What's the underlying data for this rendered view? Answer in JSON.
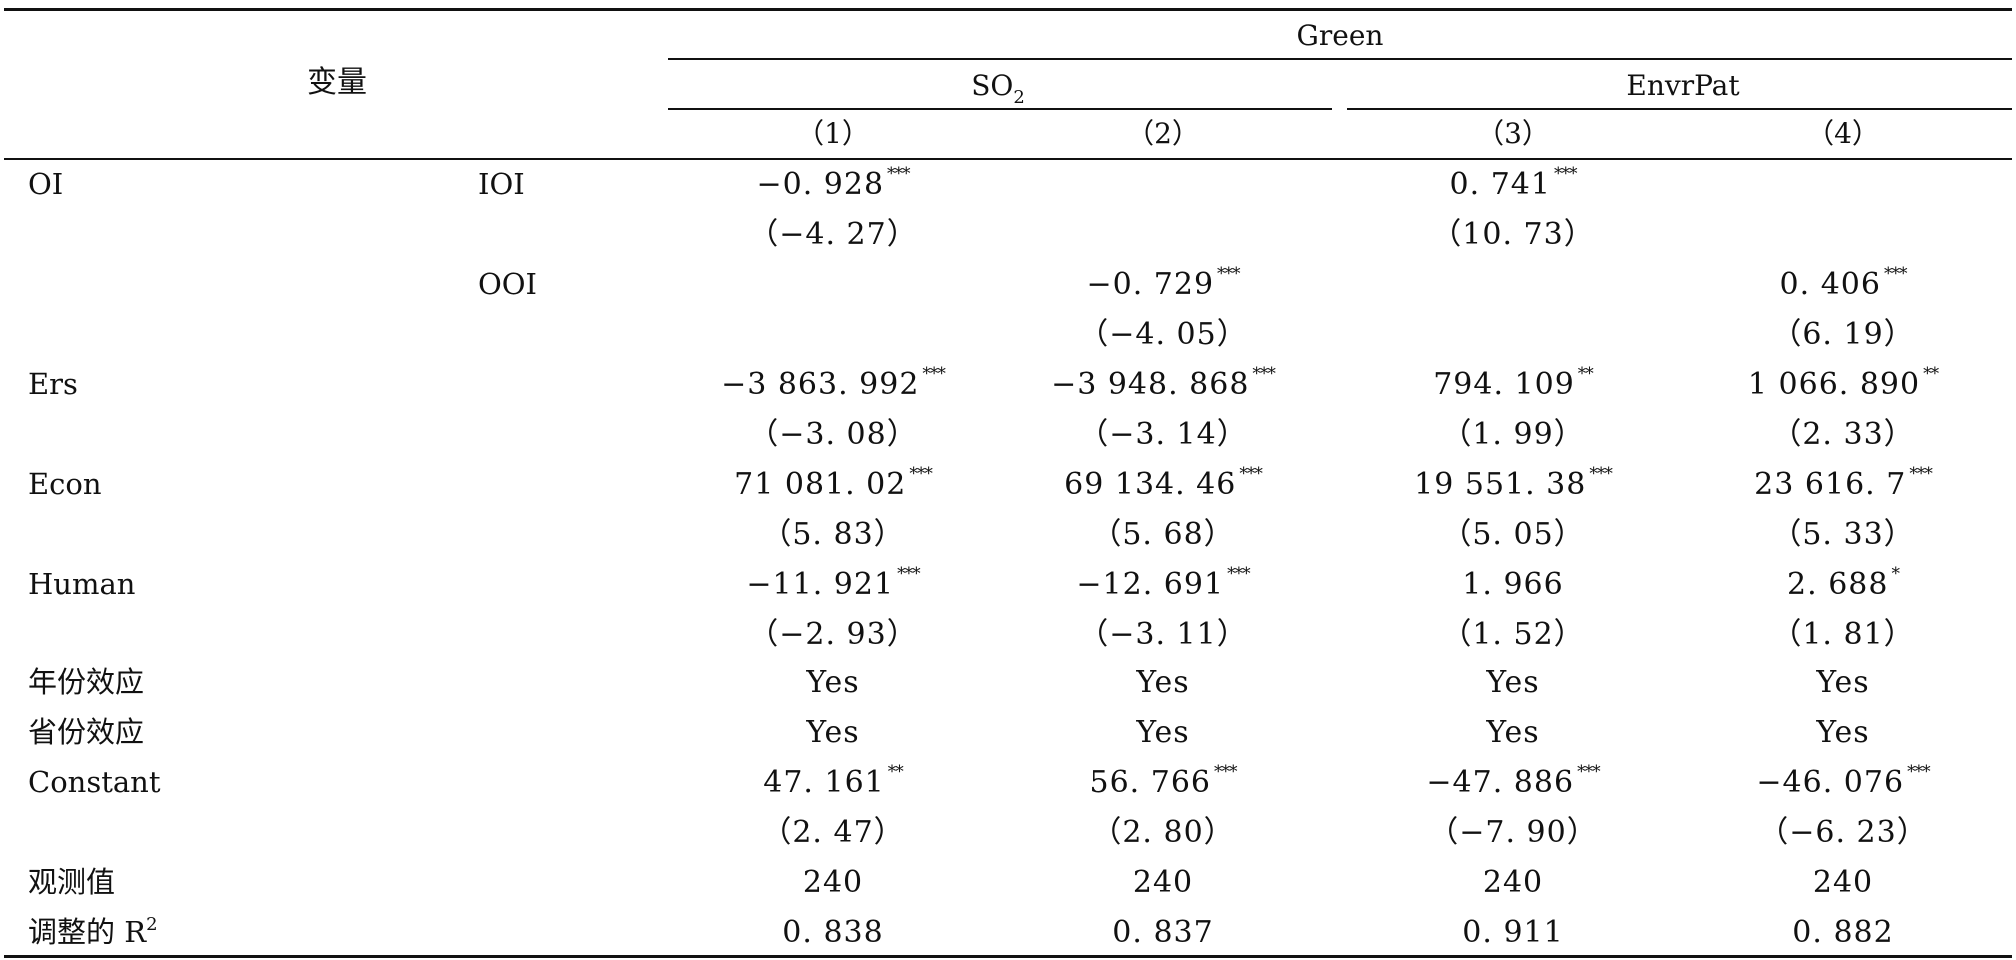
{
  "header": {
    "variable_label": "变量",
    "group_label": "Green",
    "sub_groups": [
      {
        "base": "SO",
        "subscript": "2"
      },
      {
        "base": "EnvrPat",
        "subscript": ""
      }
    ],
    "columns": [
      "（1）",
      "（2）",
      "（3）",
      "（4）"
    ]
  },
  "rows": [
    {
      "label": "OI",
      "sublabel": "IOI",
      "values": [
        {
          "v": "−0. 928",
          "s": "***"
        },
        {
          "v": "",
          "s": ""
        },
        {
          "v": "0. 741",
          "s": "***"
        },
        {
          "v": "",
          "s": ""
        }
      ],
      "tstats": [
        "（−4. 27）",
        "",
        "（10. 73）",
        ""
      ]
    },
    {
      "label": "",
      "sublabel": "OOI",
      "values": [
        {
          "v": "",
          "s": ""
        },
        {
          "v": "−0. 729",
          "s": "***"
        },
        {
          "v": "",
          "s": ""
        },
        {
          "v": "0. 406",
          "s": "***"
        }
      ],
      "tstats": [
        "",
        "（−4. 05）",
        "",
        "（6. 19）"
      ]
    },
    {
      "label": "Ers",
      "sublabel": "",
      "values": [
        {
          "v": "−3 863. 992",
          "s": "***"
        },
        {
          "v": "−3 948. 868",
          "s": "***"
        },
        {
          "v": "794. 109",
          "s": "**"
        },
        {
          "v": "1 066. 890",
          "s": "**"
        }
      ],
      "tstats": [
        "（−3. 08）",
        "（−3. 14）",
        "（1. 99）",
        "（2. 33）"
      ]
    },
    {
      "label": "Econ",
      "sublabel": "",
      "values": [
        {
          "v": "71 081. 02",
          "s": "***"
        },
        {
          "v": "69 134. 46",
          "s": "***"
        },
        {
          "v": "19 551. 38",
          "s": "***"
        },
        {
          "v": "23 616. 7",
          "s": "***"
        }
      ],
      "tstats": [
        "（5. 83）",
        "（5. 68）",
        "（5. 05）",
        "（5. 33）"
      ]
    },
    {
      "label": "Human",
      "sublabel": "",
      "values": [
        {
          "v": "−11. 921",
          "s": "***"
        },
        {
          "v": "−12. 691",
          "s": "***"
        },
        {
          "v": "1. 966",
          "s": ""
        },
        {
          "v": "2. 688",
          "s": "*"
        }
      ],
      "tstats": [
        "（−2. 93）",
        "（−3. 11）",
        "（1. 52）",
        "（1. 81）"
      ]
    },
    {
      "label": "年份效应",
      "sublabel": "",
      "values": [
        {
          "v": "Yes",
          "s": ""
        },
        {
          "v": "Yes",
          "s": ""
        },
        {
          "v": "Yes",
          "s": ""
        },
        {
          "v": "Yes",
          "s": ""
        }
      ],
      "tstats": []
    },
    {
      "label": "省份效应",
      "sublabel": "",
      "values": [
        {
          "v": "Yes",
          "s": ""
        },
        {
          "v": "Yes",
          "s": ""
        },
        {
          "v": "Yes",
          "s": ""
        },
        {
          "v": "Yes",
          "s": ""
        }
      ],
      "tstats": []
    },
    {
      "label": "Constant",
      "sublabel": "",
      "values": [
        {
          "v": "47. 161",
          "s": "**"
        },
        {
          "v": "56. 766",
          "s": "***"
        },
        {
          "v": "−47. 886",
          "s": "***"
        },
        {
          "v": "−46. 076",
          "s": "***"
        }
      ],
      "tstats": [
        "（2. 47）",
        "（2. 80）",
        "（−7. 90）",
        "（−6. 23）"
      ]
    },
    {
      "label": "观测值",
      "sublabel": "",
      "values": [
        {
          "v": "240",
          "s": ""
        },
        {
          "v": "240",
          "s": ""
        },
        {
          "v": "240",
          "s": ""
        },
        {
          "v": "240",
          "s": ""
        }
      ],
      "tstats": []
    },
    {
      "label": "调整的 R",
      "label_sup": "2",
      "sublabel": "",
      "values": [
        {
          "v": "0. 838",
          "s": ""
        },
        {
          "v": "0. 837",
          "s": ""
        },
        {
          "v": "0. 911",
          "s": ""
        },
        {
          "v": "0. 882",
          "s": ""
        }
      ],
      "tstats": []
    }
  ]
}
